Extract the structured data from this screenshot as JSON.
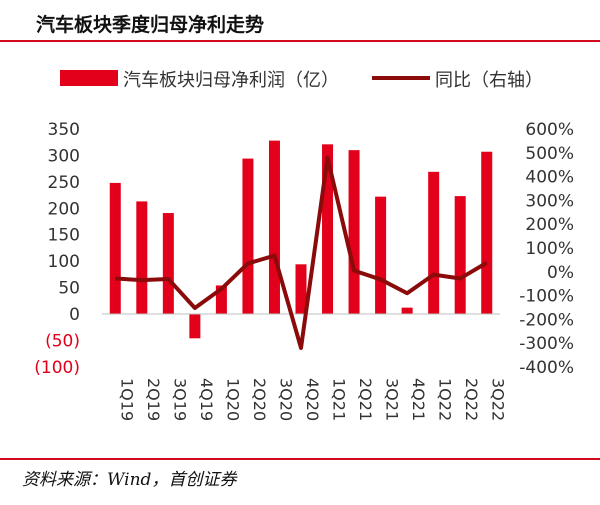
{
  "title": "汽车板块季度归母净利走势",
  "source": "资料来源：Wind，首创证券",
  "colors": {
    "bar": "#e2001a",
    "line": "#8b0a0a",
    "accent": "#d20a1e",
    "neg_label": "#e2001a"
  },
  "chart_data": {
    "type": "bar+line",
    "categories": [
      "1Q19",
      "2Q19",
      "3Q19",
      "4Q19",
      "1Q20",
      "2Q20",
      "3Q20",
      "4Q20",
      "1Q21",
      "2Q21",
      "3Q21",
      "4Q21",
      "1Q22",
      "2Q22",
      "3Q22"
    ],
    "series": [
      {
        "name": "汽车板块归母净利润（亿）",
        "type": "bar",
        "axis": "left",
        "values": [
          248,
          213,
          191,
          -46,
          54,
          294,
          328,
          94,
          321,
          310,
          222,
          12,
          269,
          223,
          307
        ]
      },
      {
        "name": "同比（右轴）",
        "type": "line",
        "axis": "right",
        "values": [
          -0.28,
          -0.35,
          -0.3,
          -1.52,
          -0.72,
          0.35,
          0.68,
          -3.2,
          4.8,
          0.05,
          -0.32,
          -0.9,
          -0.12,
          -0.28,
          0.38
        ]
      }
    ],
    "y_left": {
      "min": -100,
      "max": 350,
      "ticks": [
        350,
        300,
        250,
        200,
        150,
        100,
        50,
        0,
        -50,
        -100
      ],
      "tick_labels": [
        "350",
        "300",
        "250",
        "200",
        "150",
        "100",
        "50",
        "0",
        "(50)",
        "(100)"
      ]
    },
    "y_right": {
      "min": -4,
      "max": 6,
      "ticks": [
        6,
        5,
        4,
        3,
        2,
        1,
        0,
        -1,
        -2,
        -3,
        -4
      ],
      "tick_labels": [
        "600%",
        "500%",
        "400%",
        "300%",
        "200%",
        "100%",
        "0%",
        "-100%",
        "-200%",
        "-300%",
        "-400%"
      ]
    },
    "grid": false,
    "legend_position": "top"
  }
}
